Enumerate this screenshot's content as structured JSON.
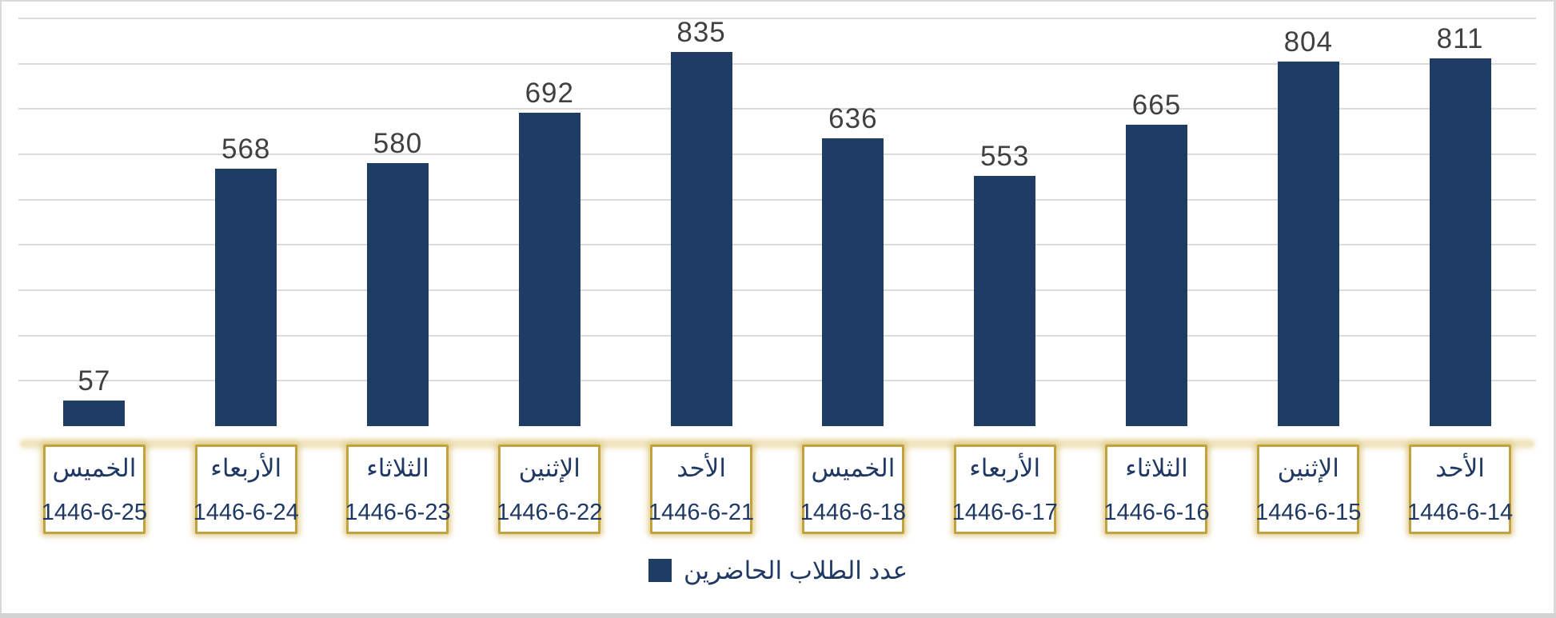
{
  "chart_data": {
    "type": "bar",
    "title": "",
    "series": [
      {
        "name": "عدد الطلاب الحاضرين",
        "values": [
          57,
          568,
          580,
          692,
          835,
          636,
          553,
          665,
          804,
          811
        ]
      }
    ],
    "categories": [
      {
        "day": "الخميس",
        "date": "1446-6-25"
      },
      {
        "day": "الأربعاء",
        "date": "1446-6-24"
      },
      {
        "day": "الثلاثاء",
        "date": "1446-6-23"
      },
      {
        "day": "الإثنين",
        "date": "1446-6-22"
      },
      {
        "day": "الأحد",
        "date": "1446-6-21"
      },
      {
        "day": "الخميس",
        "date": "1446-6-18"
      },
      {
        "day": "الأربعاء",
        "date": "1446-6-17"
      },
      {
        "day": "الثلاثاء",
        "date": "1446-6-16"
      },
      {
        "day": "الإثنين",
        "date": "1446-6-15"
      },
      {
        "day": "الأحد",
        "date": "1446-6-14"
      }
    ],
    "xlabel": "",
    "ylabel": "",
    "ylim": [
      0,
      900
    ],
    "gridline_step": 100,
    "grid": true,
    "data_labels": true,
    "legend_position": "bottom-center"
  },
  "legend": {
    "label": "عدد الطلاب الحاضرين",
    "swatch_icon": "navy-square"
  },
  "colors": {
    "bar": "#1E3C64",
    "gridline": "#DBDBDB",
    "value_label": "#404040",
    "box_border_gold": "#C2A23E",
    "navy_text": "#1F3864",
    "baseline_gold": "#EFE5C2",
    "frame_border": "#D9D9D9",
    "bottom_strip": "#D2D2D2"
  }
}
